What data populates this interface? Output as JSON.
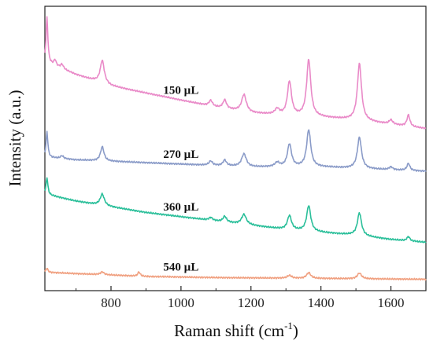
{
  "chart_data": {
    "type": "line",
    "title": "",
    "xlabel": "Raman shift (cm",
    "xlabel_sup": "-1",
    "xlabel_end": ")",
    "ylabel": "Intensity (a.u.)",
    "xlim": [
      611,
      1700
    ],
    "ylim": [
      0,
      100
    ],
    "y_ticks_shown": false,
    "x_ticks": [
      {
        "value": 800,
        "label": "800"
      },
      {
        "value": 1000,
        "label": "1000"
      },
      {
        "value": 1200,
        "label": "1200"
      },
      {
        "value": 1400,
        "label": "1400"
      },
      {
        "value": 1600,
        "label": "1600"
      }
    ],
    "series": [
      {
        "name": "150 µL",
        "label": "150 µL",
        "label_x": 1000,
        "color": "#e98ac8",
        "baseline": [
          [
            611,
            80.5
          ],
          [
            700,
            76
          ],
          [
            800,
            72
          ],
          [
            900,
            69.5
          ],
          [
            1000,
            67
          ],
          [
            1100,
            64.5
          ],
          [
            1200,
            62.5
          ],
          [
            1300,
            61.5
          ],
          [
            1400,
            61
          ],
          [
            1500,
            60
          ],
          [
            1600,
            58.5
          ],
          [
            1700,
            57
          ]
        ],
        "peaks": [
          {
            "x": 617,
            "h": 16,
            "w": 3
          },
          {
            "x": 640,
            "h": 2,
            "w": 4
          },
          {
            "x": 660,
            "h": 1.5,
            "w": 5
          },
          {
            "x": 775,
            "h": 8,
            "w": 7
          },
          {
            "x": 1085,
            "h": 2,
            "w": 6
          },
          {
            "x": 1125,
            "h": 3,
            "w": 6
          },
          {
            "x": 1180,
            "h": 6,
            "w": 8
          },
          {
            "x": 1275,
            "h": 2,
            "w": 8
          },
          {
            "x": 1310,
            "h": 12,
            "w": 7
          },
          {
            "x": 1365,
            "h": 20,
            "w": 7
          },
          {
            "x": 1510,
            "h": 20,
            "w": 7
          },
          {
            "x": 1600,
            "h": 1.5,
            "w": 6
          },
          {
            "x": 1650,
            "h": 4,
            "w": 5
          }
        ]
      },
      {
        "name": "270 µL",
        "label": "270 µL",
        "label_x": 1000,
        "color": "#8a9bc8",
        "baseline": [
          [
            611,
            47
          ],
          [
            700,
            46
          ],
          [
            800,
            45.5
          ],
          [
            900,
            45
          ],
          [
            1000,
            44.5
          ],
          [
            1100,
            44
          ],
          [
            1200,
            43.5
          ],
          [
            1300,
            43.5
          ],
          [
            1400,
            43.5
          ],
          [
            1500,
            43
          ],
          [
            1600,
            42.5
          ],
          [
            1700,
            42
          ]
        ],
        "peaks": [
          {
            "x": 617,
            "h": 9,
            "w": 3
          },
          {
            "x": 660,
            "h": 1,
            "w": 5
          },
          {
            "x": 775,
            "h": 5,
            "w": 6
          },
          {
            "x": 1085,
            "h": 1.5,
            "w": 6
          },
          {
            "x": 1125,
            "h": 2,
            "w": 6
          },
          {
            "x": 1180,
            "h": 4.5,
            "w": 8
          },
          {
            "x": 1275,
            "h": 1.5,
            "w": 8
          },
          {
            "x": 1310,
            "h": 8,
            "w": 7
          },
          {
            "x": 1365,
            "h": 13,
            "w": 7
          },
          {
            "x": 1510,
            "h": 11,
            "w": 7
          },
          {
            "x": 1600,
            "h": 1,
            "w": 6
          },
          {
            "x": 1650,
            "h": 2.5,
            "w": 5
          }
        ]
      },
      {
        "name": "360 µL",
        "label": "360 µL",
        "label_x": 1000,
        "color": "#2bbf9a",
        "baseline": [
          [
            611,
            34
          ],
          [
            700,
            31.5
          ],
          [
            800,
            29.5
          ],
          [
            900,
            27.5
          ],
          [
            1000,
            26
          ],
          [
            1100,
            24.5
          ],
          [
            1200,
            23
          ],
          [
            1300,
            21.5
          ],
          [
            1400,
            20.5
          ],
          [
            1500,
            19.5
          ],
          [
            1600,
            18
          ],
          [
            1700,
            17
          ]
        ],
        "peaks": [
          {
            "x": 617,
            "h": 6,
            "w": 3
          },
          {
            "x": 775,
            "h": 4,
            "w": 7
          },
          {
            "x": 1085,
            "h": 1,
            "w": 6
          },
          {
            "x": 1125,
            "h": 2,
            "w": 6
          },
          {
            "x": 1180,
            "h": 3.5,
            "w": 8
          },
          {
            "x": 1310,
            "h": 5,
            "w": 7
          },
          {
            "x": 1365,
            "h": 9,
            "w": 7
          },
          {
            "x": 1510,
            "h": 8,
            "w": 7
          },
          {
            "x": 1650,
            "h": 1.5,
            "w": 5
          }
        ]
      },
      {
        "name": "540 µL",
        "label": "540 µL",
        "label_x": 1000,
        "color": "#f0a080",
        "baseline": [
          [
            611,
            6.5
          ],
          [
            700,
            6
          ],
          [
            800,
            5.5
          ],
          [
            900,
            5
          ],
          [
            1000,
            4.8
          ],
          [
            1100,
            4.6
          ],
          [
            1200,
            4.5
          ],
          [
            1300,
            4.4
          ],
          [
            1400,
            4.3
          ],
          [
            1500,
            4.2
          ],
          [
            1600,
            4.1
          ],
          [
            1700,
            4
          ]
        ],
        "peaks": [
          {
            "x": 617,
            "h": 1.5,
            "w": 3
          },
          {
            "x": 775,
            "h": 1,
            "w": 6
          },
          {
            "x": 880,
            "h": 1.5,
            "w": 4
          },
          {
            "x": 1310,
            "h": 1,
            "w": 7
          },
          {
            "x": 1365,
            "h": 2,
            "w": 7
          },
          {
            "x": 1510,
            "h": 2,
            "w": 7
          }
        ]
      }
    ]
  }
}
